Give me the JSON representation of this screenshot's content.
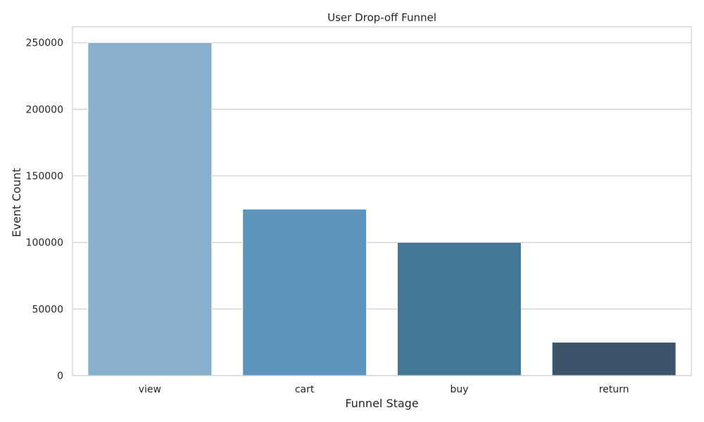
{
  "chart_data": {
    "type": "bar",
    "title": "User Drop-off Funnel",
    "xlabel": "Funnel Stage",
    "ylabel": "Event Count",
    "categories": [
      "view",
      "cart",
      "buy",
      "return"
    ],
    "values": [
      250000,
      125000,
      100000,
      25000
    ],
    "colors": [
      "#88b0cc",
      "#5b94bc",
      "#447696",
      "#3c546a"
    ],
    "ylim": [
      0,
      262000
    ],
    "yticks": [
      0,
      50000,
      100000,
      150000,
      200000,
      250000
    ],
    "grid": true,
    "legend": "none"
  }
}
